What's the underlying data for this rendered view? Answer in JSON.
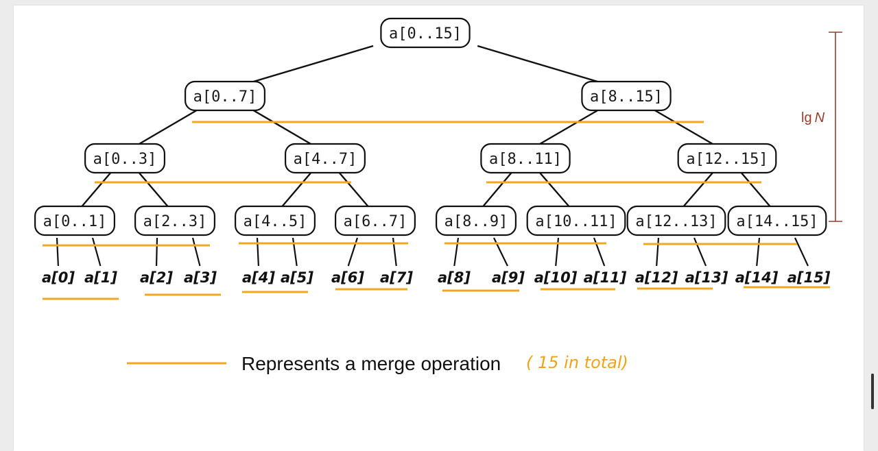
{
  "colors": {
    "merge_line": "#f3a61f",
    "height_marker": "#9b3a2c",
    "note": "#f0a318",
    "node_border": "#111111"
  },
  "levels": [
    [
      "a[0..15]"
    ],
    [
      "a[0..7]",
      "a[8..15]"
    ],
    [
      "a[0..3]",
      "a[4..7]",
      "a[8..11]",
      "a[12..15]"
    ],
    [
      "a[0..1]",
      "a[2..3]",
      "a[4..5]",
      "a[6..7]",
      "a[8..9]",
      "a[10..11]",
      "a[12..13]",
      "a[14..15]"
    ]
  ],
  "leaves": [
    "a[0]",
    "a[1]",
    "a[2]",
    "a[3]",
    "a[4]",
    "a[5]",
    "a[6]",
    "a[7]",
    "a[8]",
    "a[9]",
    "a[10]",
    "a[11]",
    "a[12]",
    "a[13]",
    "a[14]",
    "a[15]"
  ],
  "height_label": {
    "text_lg": "lg",
    "text_n": "N"
  },
  "legend": {
    "text": "Represents a merge operation",
    "note": "( 15 in total)"
  }
}
